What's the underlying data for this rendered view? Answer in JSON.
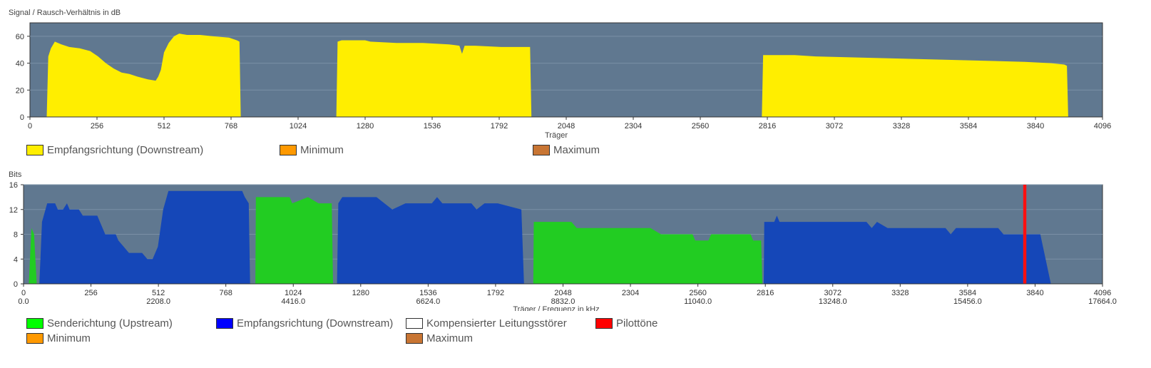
{
  "chart_data": [
    {
      "type": "area",
      "ylabel": "Signal / Rausch-Verhältnis in dB",
      "xlabel": "Träger",
      "xlim": [
        0,
        4096
      ],
      "ylim": [
        0,
        70
      ],
      "x_ticks": [
        "0",
        "256",
        "512",
        "768",
        "1024",
        "1280",
        "1536",
        "1792",
        "2048",
        "2304",
        "2560",
        "2816",
        "3072",
        "3328",
        "3584",
        "3840",
        "4096"
      ],
      "y_ticks": [
        "0",
        "20",
        "40",
        "60"
      ],
      "plot_bg": "#607890",
      "legend": [
        {
          "label": "Empfangsrichtung (Downstream)",
          "color": "#ffee00"
        },
        {
          "label": "Minimum",
          "color": "#ff9900"
        },
        {
          "label": "Maximum",
          "color": "#c87533"
        }
      ],
      "series": [
        {
          "color": "#ffee00",
          "points": [
            [
              64,
              0
            ],
            [
              70,
              45
            ],
            [
              80,
              51
            ],
            [
              95,
              56
            ],
            [
              120,
              54
            ],
            [
              150,
              52
            ],
            [
              190,
              51
            ],
            [
              230,
              49
            ],
            [
              260,
              45
            ],
            [
              290,
              40
            ],
            [
              320,
              36
            ],
            [
              350,
              33
            ],
            [
              380,
              32
            ],
            [
              410,
              30
            ],
            [
              450,
              28
            ],
            [
              480,
              27
            ],
            [
              490,
              30
            ],
            [
              500,
              35
            ],
            [
              512,
              48
            ],
            [
              530,
              55
            ],
            [
              550,
              60
            ],
            [
              570,
              62
            ],
            [
              600,
              61
            ],
            [
              650,
              61
            ],
            [
              700,
              60
            ],
            [
              760,
              59
            ],
            [
              790,
              57
            ],
            [
              800,
              56
            ],
            [
              805,
              0
            ],
            [
              1170,
              0
            ],
            [
              1175,
              56
            ],
            [
              1190,
              57
            ],
            [
              1280,
              57
            ],
            [
              1300,
              56
            ],
            [
              1400,
              55
            ],
            [
              1500,
              55
            ],
            [
              1600,
              54
            ],
            [
              1640,
              53
            ],
            [
              1650,
              47
            ],
            [
              1660,
              53
            ],
            [
              1700,
              53
            ],
            [
              1800,
              52
            ],
            [
              1910,
              52
            ],
            [
              1915,
              0
            ],
            [
              2795,
              0
            ],
            [
              2800,
              46
            ],
            [
              2920,
              46
            ],
            [
              3000,
              45
            ],
            [
              3200,
              44
            ],
            [
              3400,
              43
            ],
            [
              3600,
              42
            ],
            [
              3800,
              41
            ],
            [
              3900,
              40
            ],
            [
              3950,
              39
            ],
            [
              3960,
              38
            ],
            [
              3965,
              0
            ]
          ]
        }
      ]
    },
    {
      "type": "area",
      "ylabel": "Bits",
      "xlabel": "Träger / Frequenz in kHz",
      "xlim": [
        0,
        4096
      ],
      "ylim": [
        0,
        16
      ],
      "x_ticks": [
        "0",
        "256",
        "512",
        "768",
        "1024",
        "1280",
        "1536",
        "1792",
        "2048",
        "2304",
        "2560",
        "2816",
        "3072",
        "3328",
        "3584",
        "3840",
        "4096"
      ],
      "x_ticks_khz": [
        "0.0",
        "2208.0",
        "4416.0",
        "6624.0",
        "8832.0",
        "11040.0",
        "13248.0",
        "15456.0",
        "17664.0"
      ],
      "y_ticks": [
        "0",
        "4",
        "8",
        "12",
        "16"
      ],
      "plot_bg": "#607890",
      "legend": [
        {
          "label": "Senderichtung (Upstream)",
          "color": "#00ff00"
        },
        {
          "label": "Empfangsrichtung (Downstream)",
          "color": "#0000ff"
        },
        {
          "label": "Kompensierter Leitungsstörer",
          "color": "#ffffff"
        },
        {
          "label": "Pilottöne",
          "color": "#ff0000"
        },
        {
          "label": "Minimum",
          "color": "#ff9900"
        },
        {
          "label": "Maximum",
          "color": "#c87533"
        }
      ],
      "series": [
        {
          "name": "Senderichtung (Upstream)",
          "color": "#22cc22",
          "points": [
            [
              20,
              0
            ],
            [
              30,
              9
            ],
            [
              40,
              8
            ],
            [
              50,
              0
            ]
          ]
        },
        {
          "name": "Senderichtung (Upstream)",
          "color": "#22cc22",
          "points": [
            [
              880,
              0
            ],
            [
              882,
              14
            ],
            [
              1010,
              14
            ],
            [
              1020,
              13
            ],
            [
              1080,
              14
            ],
            [
              1120,
              13
            ],
            [
              1170,
              13
            ],
            [
              1175,
              0
            ]
          ]
        },
        {
          "name": "Senderichtung (Upstream)",
          "color": "#22cc22",
          "points": [
            [
              1935,
              0
            ],
            [
              1937,
              10
            ],
            [
              2080,
              10
            ],
            [
              2100,
              9
            ],
            [
              2380,
              9
            ],
            [
              2420,
              8
            ],
            [
              2540,
              8
            ],
            [
              2550,
              7
            ],
            [
              2600,
              7
            ],
            [
              2610,
              8
            ],
            [
              2760,
              8
            ],
            [
              2770,
              7
            ],
            [
              2800,
              7
            ],
            [
              2805,
              0
            ]
          ]
        },
        {
          "name": "Empfangsrichtung (Downstream)",
          "color": "#1547b8",
          "points": [
            [
              60,
              0
            ],
            [
              70,
              10
            ],
            [
              90,
              13
            ],
            [
              120,
              13
            ],
            [
              130,
              12
            ],
            [
              150,
              12
            ],
            [
              165,
              13
            ],
            [
              175,
              12
            ],
            [
              210,
              12
            ],
            [
              225,
              11
            ],
            [
              280,
              11
            ],
            [
              300,
              9
            ],
            [
              310,
              8
            ],
            [
              350,
              8
            ],
            [
              360,
              7
            ],
            [
              380,
              6
            ],
            [
              400,
              5
            ],
            [
              450,
              5
            ],
            [
              470,
              4
            ],
            [
              490,
              4
            ],
            [
              510,
              6
            ],
            [
              530,
              12
            ],
            [
              550,
              15
            ],
            [
              600,
              15
            ],
            [
              830,
              15
            ],
            [
              840,
              14
            ],
            [
              855,
              13
            ],
            [
              860,
              0
            ]
          ]
        },
        {
          "name": "Empfangsrichtung (Downstream)",
          "color": "#1547b8",
          "points": [
            [
              1190,
              0
            ],
            [
              1195,
              13
            ],
            [
              1210,
              14
            ],
            [
              1340,
              14
            ],
            [
              1370,
              13
            ],
            [
              1400,
              12
            ],
            [
              1450,
              13
            ],
            [
              1550,
              13
            ],
            [
              1570,
              14
            ],
            [
              1590,
              13
            ],
            [
              1700,
              13
            ],
            [
              1720,
              12
            ],
            [
              1750,
              13
            ],
            [
              1800,
              13
            ],
            [
              1890,
              12
            ],
            [
              1900,
              0
            ]
          ]
        },
        {
          "name": "Empfangsrichtung (Downstream)",
          "color": "#1547b8",
          "points": [
            [
              2810,
              0
            ],
            [
              2812,
              10
            ],
            [
              2850,
              10
            ],
            [
              2860,
              11
            ],
            [
              2870,
              10
            ],
            [
              3200,
              10
            ],
            [
              3220,
              9
            ],
            [
              3240,
              10
            ],
            [
              3280,
              9
            ],
            [
              3500,
              9
            ],
            [
              3520,
              8
            ],
            [
              3540,
              9
            ],
            [
              3620,
              9
            ],
            [
              3700,
              9
            ],
            [
              3720,
              8
            ],
            [
              3860,
              8
            ],
            [
              3900,
              0
            ]
          ]
        },
        {
          "name": "Pilottöne",
          "color": "#ff1010",
          "points": [
            [
              3795,
              0
            ],
            [
              3795,
              16
            ],
            [
              3807,
              16
            ],
            [
              3807,
              0
            ]
          ]
        }
      ]
    }
  ]
}
